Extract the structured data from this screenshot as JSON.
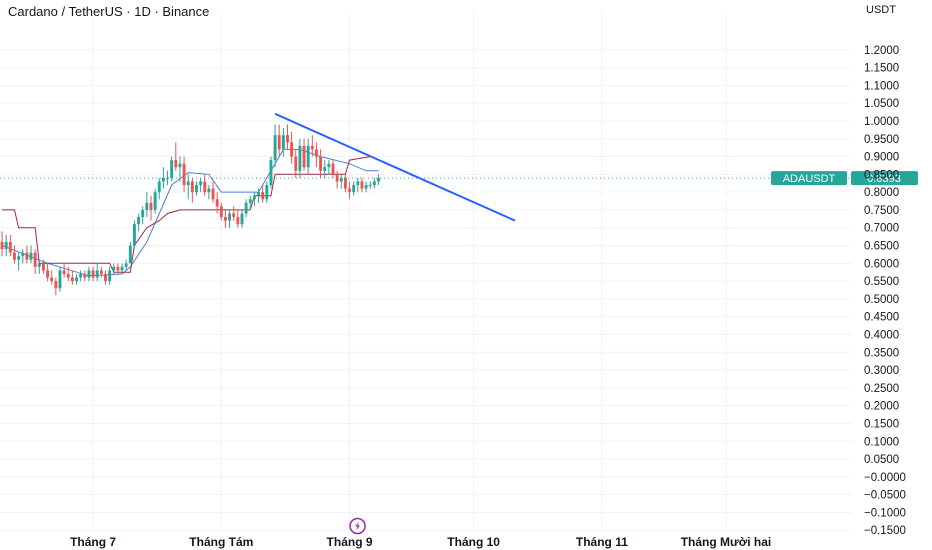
{
  "header": {
    "title": "Cardano / TetherUS · 1D · Binance",
    "currency": "USDT"
  },
  "colors": {
    "up": "#26a69a",
    "down": "#ef5350",
    "baseline": "#4c7dd6",
    "conversion": "#9c2b3d",
    "trendline": "#2962ff",
    "price_line": "#26a69a",
    "grid": "#f0f3fa",
    "event_icon": "#9c27b0"
  },
  "icons": {
    "event": "lightning-icon"
  },
  "chart_data": {
    "type": "candlestick",
    "symbol": "ADAUSDT",
    "last_price_label": "0.8393",
    "last_price": 0.8393,
    "ylim": [
      -0.155,
      1.25
    ],
    "y_ticks": [
      1.2,
      1.15,
      1.1,
      1.05,
      1.0,
      0.95,
      0.9,
      0.85,
      0.8,
      0.75,
      0.7,
      0.65,
      0.6,
      0.55,
      0.5,
      0.45,
      0.4,
      0.35,
      0.3,
      0.25,
      0.2,
      0.15,
      0.1,
      0.05,
      0.0,
      -0.05,
      -0.1,
      -0.15
    ],
    "y_tick_labels": [
      "1.2000",
      "1.1500",
      "1.1000",
      "1.0500",
      "1.0000",
      "0.9500",
      "0.9000",
      "0.8500",
      "0.8000",
      "0.7500",
      "0.7000",
      "0.6500",
      "0.6000",
      "0.5500",
      "0.5000",
      "0.4500",
      "0.4000",
      "0.3500",
      "0.3000",
      "0.2500",
      "0.2000",
      "0.1500",
      "0.1000",
      "0.0500",
      "−0.0000",
      "−0.0500",
      "−0.1000",
      "−0.1500"
    ],
    "x_ticks": [
      {
        "label": "Tháng 7",
        "date": "2025-07-01"
      },
      {
        "label": "Tháng Tám",
        "date": "2025-08-01"
      },
      {
        "label": "Tháng 9",
        "date": "2025-09-01"
      },
      {
        "label": "Tháng 10",
        "date": "2025-10-01"
      },
      {
        "label": "Tháng 11",
        "date": "2025-11-01"
      },
      {
        "label": "Tháng Mười hai",
        "date": "2025-12-01"
      }
    ],
    "xlim": [
      "2025-06-09",
      "2025-12-31"
    ],
    "candles": [
      {
        "d": "2025-06-09",
        "o": 0.66,
        "h": 0.69,
        "l": 0.62,
        "c": 0.64
      },
      {
        "d": "2025-06-10",
        "o": 0.64,
        "h": 0.68,
        "l": 0.62,
        "c": 0.66
      },
      {
        "d": "2025-06-11",
        "o": 0.66,
        "h": 0.68,
        "l": 0.62,
        "c": 0.63
      },
      {
        "d": "2025-06-12",
        "o": 0.63,
        "h": 0.65,
        "l": 0.6,
        "c": 0.61
      },
      {
        "d": "2025-06-13",
        "o": 0.61,
        "h": 0.63,
        "l": 0.58,
        "c": 0.62
      },
      {
        "d": "2025-06-14",
        "o": 0.62,
        "h": 0.64,
        "l": 0.6,
        "c": 0.63
      },
      {
        "d": "2025-06-15",
        "o": 0.63,
        "h": 0.65,
        "l": 0.6,
        "c": 0.61
      },
      {
        "d": "2025-06-16",
        "o": 0.61,
        "h": 0.65,
        "l": 0.6,
        "c": 0.63
      },
      {
        "d": "2025-06-17",
        "o": 0.63,
        "h": 0.64,
        "l": 0.57,
        "c": 0.59
      },
      {
        "d": "2025-06-18",
        "o": 0.59,
        "h": 0.61,
        "l": 0.57,
        "c": 0.6
      },
      {
        "d": "2025-06-19",
        "o": 0.6,
        "h": 0.61,
        "l": 0.57,
        "c": 0.58
      },
      {
        "d": "2025-06-20",
        "o": 0.58,
        "h": 0.6,
        "l": 0.55,
        "c": 0.56
      },
      {
        "d": "2025-06-21",
        "o": 0.56,
        "h": 0.58,
        "l": 0.54,
        "c": 0.55
      },
      {
        "d": "2025-06-22",
        "o": 0.55,
        "h": 0.56,
        "l": 0.51,
        "c": 0.53
      },
      {
        "d": "2025-06-23",
        "o": 0.53,
        "h": 0.59,
        "l": 0.52,
        "c": 0.58
      },
      {
        "d": "2025-06-24",
        "o": 0.58,
        "h": 0.6,
        "l": 0.56,
        "c": 0.57
      },
      {
        "d": "2025-06-25",
        "o": 0.57,
        "h": 0.59,
        "l": 0.55,
        "c": 0.56
      },
      {
        "d": "2025-06-26",
        "o": 0.56,
        "h": 0.58,
        "l": 0.54,
        "c": 0.55
      },
      {
        "d": "2025-06-27",
        "o": 0.55,
        "h": 0.57,
        "l": 0.54,
        "c": 0.56
      },
      {
        "d": "2025-06-28",
        "o": 0.56,
        "h": 0.58,
        "l": 0.55,
        "c": 0.57
      },
      {
        "d": "2025-06-29",
        "o": 0.57,
        "h": 0.58,
        "l": 0.55,
        "c": 0.56
      },
      {
        "d": "2025-06-30",
        "o": 0.56,
        "h": 0.59,
        "l": 0.55,
        "c": 0.58
      },
      {
        "d": "2025-07-01",
        "o": 0.58,
        "h": 0.59,
        "l": 0.55,
        "c": 0.56
      },
      {
        "d": "2025-07-02",
        "o": 0.56,
        "h": 0.6,
        "l": 0.55,
        "c": 0.58
      },
      {
        "d": "2025-07-03",
        "o": 0.58,
        "h": 0.59,
        "l": 0.56,
        "c": 0.57
      },
      {
        "d": "2025-07-04",
        "o": 0.57,
        "h": 0.58,
        "l": 0.54,
        "c": 0.55
      },
      {
        "d": "2025-07-05",
        "o": 0.55,
        "h": 0.59,
        "l": 0.54,
        "c": 0.58
      },
      {
        "d": "2025-07-06",
        "o": 0.58,
        "h": 0.6,
        "l": 0.57,
        "c": 0.59
      },
      {
        "d": "2025-07-07",
        "o": 0.59,
        "h": 0.6,
        "l": 0.57,
        "c": 0.58
      },
      {
        "d": "2025-07-08",
        "o": 0.58,
        "h": 0.6,
        "l": 0.57,
        "c": 0.59
      },
      {
        "d": "2025-07-09",
        "o": 0.59,
        "h": 0.61,
        "l": 0.58,
        "c": 0.6
      },
      {
        "d": "2025-07-10",
        "o": 0.6,
        "h": 0.66,
        "l": 0.6,
        "c": 0.65
      },
      {
        "d": "2025-07-11",
        "o": 0.65,
        "h": 0.72,
        "l": 0.64,
        "c": 0.71
      },
      {
        "d": "2025-07-12",
        "o": 0.71,
        "h": 0.74,
        "l": 0.69,
        "c": 0.73
      },
      {
        "d": "2025-07-13",
        "o": 0.73,
        "h": 0.76,
        "l": 0.71,
        "c": 0.75
      },
      {
        "d": "2025-07-14",
        "o": 0.75,
        "h": 0.8,
        "l": 0.73,
        "c": 0.77
      },
      {
        "d": "2025-07-15",
        "o": 0.77,
        "h": 0.79,
        "l": 0.72,
        "c": 0.75
      },
      {
        "d": "2025-07-16",
        "o": 0.75,
        "h": 0.81,
        "l": 0.74,
        "c": 0.8
      },
      {
        "d": "2025-07-17",
        "o": 0.8,
        "h": 0.84,
        "l": 0.78,
        "c": 0.83
      },
      {
        "d": "2025-07-18",
        "o": 0.83,
        "h": 0.87,
        "l": 0.81,
        "c": 0.84
      },
      {
        "d": "2025-07-19",
        "o": 0.84,
        "h": 0.86,
        "l": 0.82,
        "c": 0.84
      },
      {
        "d": "2025-07-20",
        "o": 0.84,
        "h": 0.9,
        "l": 0.83,
        "c": 0.89
      },
      {
        "d": "2025-07-21",
        "o": 0.89,
        "h": 0.94,
        "l": 0.86,
        "c": 0.87
      },
      {
        "d": "2025-07-22",
        "o": 0.87,
        "h": 0.9,
        "l": 0.83,
        "c": 0.88
      },
      {
        "d": "2025-07-23",
        "o": 0.88,
        "h": 0.9,
        "l": 0.8,
        "c": 0.82
      },
      {
        "d": "2025-07-24",
        "o": 0.82,
        "h": 0.85,
        "l": 0.78,
        "c": 0.83
      },
      {
        "d": "2025-07-25",
        "o": 0.83,
        "h": 0.84,
        "l": 0.77,
        "c": 0.8
      },
      {
        "d": "2025-07-26",
        "o": 0.8,
        "h": 0.83,
        "l": 0.79,
        "c": 0.82
      },
      {
        "d": "2025-07-27",
        "o": 0.82,
        "h": 0.84,
        "l": 0.8,
        "c": 0.83
      },
      {
        "d": "2025-07-28",
        "o": 0.83,
        "h": 0.85,
        "l": 0.79,
        "c": 0.8
      },
      {
        "d": "2025-07-29",
        "o": 0.8,
        "h": 0.82,
        "l": 0.78,
        "c": 0.81
      },
      {
        "d": "2025-07-30",
        "o": 0.81,
        "h": 0.83,
        "l": 0.77,
        "c": 0.78
      },
      {
        "d": "2025-07-31",
        "o": 0.78,
        "h": 0.8,
        "l": 0.74,
        "c": 0.76
      },
      {
        "d": "2025-08-01",
        "o": 0.76,
        "h": 0.77,
        "l": 0.72,
        "c": 0.73
      },
      {
        "d": "2025-08-02",
        "o": 0.73,
        "h": 0.75,
        "l": 0.7,
        "c": 0.72
      },
      {
        "d": "2025-08-03",
        "o": 0.72,
        "h": 0.75,
        "l": 0.7,
        "c": 0.74
      },
      {
        "d": "2025-08-04",
        "o": 0.74,
        "h": 0.76,
        "l": 0.72,
        "c": 0.73
      },
      {
        "d": "2025-08-05",
        "o": 0.73,
        "h": 0.75,
        "l": 0.7,
        "c": 0.71
      },
      {
        "d": "2025-08-06",
        "o": 0.71,
        "h": 0.75,
        "l": 0.7,
        "c": 0.74
      },
      {
        "d": "2025-08-07",
        "o": 0.74,
        "h": 0.78,
        "l": 0.73,
        "c": 0.77
      },
      {
        "d": "2025-08-08",
        "o": 0.77,
        "h": 0.79,
        "l": 0.75,
        "c": 0.78
      },
      {
        "d": "2025-08-09",
        "o": 0.78,
        "h": 0.8,
        "l": 0.76,
        "c": 0.79
      },
      {
        "d": "2025-08-10",
        "o": 0.79,
        "h": 0.81,
        "l": 0.77,
        "c": 0.8
      },
      {
        "d": "2025-08-11",
        "o": 0.8,
        "h": 0.82,
        "l": 0.77,
        "c": 0.78
      },
      {
        "d": "2025-08-12",
        "o": 0.78,
        "h": 0.83,
        "l": 0.77,
        "c": 0.82
      },
      {
        "d": "2025-08-13",
        "o": 0.82,
        "h": 0.9,
        "l": 0.81,
        "c": 0.89
      },
      {
        "d": "2025-08-14",
        "o": 0.89,
        "h": 0.99,
        "l": 0.87,
        "c": 0.96
      },
      {
        "d": "2025-08-15",
        "o": 0.96,
        "h": 0.99,
        "l": 0.9,
        "c": 0.92
      },
      {
        "d": "2025-08-16",
        "o": 0.92,
        "h": 0.98,
        "l": 0.9,
        "c": 0.96
      },
      {
        "d": "2025-08-17",
        "o": 0.96,
        "h": 0.99,
        "l": 0.92,
        "c": 0.94
      },
      {
        "d": "2025-08-18",
        "o": 0.94,
        "h": 0.97,
        "l": 0.88,
        "c": 0.9
      },
      {
        "d": "2025-08-19",
        "o": 0.9,
        "h": 0.92,
        "l": 0.84,
        "c": 0.86
      },
      {
        "d": "2025-08-20",
        "o": 0.86,
        "h": 0.95,
        "l": 0.84,
        "c": 0.93
      },
      {
        "d": "2025-08-21",
        "o": 0.93,
        "h": 0.95,
        "l": 0.86,
        "c": 0.87
      },
      {
        "d": "2025-08-22",
        "o": 0.87,
        "h": 0.95,
        "l": 0.85,
        "c": 0.93
      },
      {
        "d": "2025-08-23",
        "o": 0.93,
        "h": 0.96,
        "l": 0.9,
        "c": 0.92
      },
      {
        "d": "2025-08-24",
        "o": 0.92,
        "h": 0.94,
        "l": 0.87,
        "c": 0.9
      },
      {
        "d": "2025-08-25",
        "o": 0.9,
        "h": 0.92,
        "l": 0.84,
        "c": 0.86
      },
      {
        "d": "2025-08-26",
        "o": 0.86,
        "h": 0.89,
        "l": 0.84,
        "c": 0.87
      },
      {
        "d": "2025-08-27",
        "o": 0.87,
        "h": 0.89,
        "l": 0.85,
        "c": 0.88
      },
      {
        "d": "2025-08-28",
        "o": 0.88,
        "h": 0.89,
        "l": 0.84,
        "c": 0.85
      },
      {
        "d": "2025-08-29",
        "o": 0.85,
        "h": 0.86,
        "l": 0.81,
        "c": 0.83
      },
      {
        "d": "2025-08-30",
        "o": 0.83,
        "h": 0.85,
        "l": 0.81,
        "c": 0.84
      },
      {
        "d": "2025-08-31",
        "o": 0.84,
        "h": 0.85,
        "l": 0.8,
        "c": 0.81
      },
      {
        "d": "2025-09-01",
        "o": 0.81,
        "h": 0.83,
        "l": 0.78,
        "c": 0.8
      },
      {
        "d": "2025-09-02",
        "o": 0.8,
        "h": 0.83,
        "l": 0.79,
        "c": 0.82
      },
      {
        "d": "2025-09-03",
        "o": 0.82,
        "h": 0.84,
        "l": 0.8,
        "c": 0.83
      },
      {
        "d": "2025-09-04",
        "o": 0.83,
        "h": 0.84,
        "l": 0.8,
        "c": 0.81
      },
      {
        "d": "2025-09-05",
        "o": 0.81,
        "h": 0.83,
        "l": 0.8,
        "c": 0.82
      },
      {
        "d": "2025-09-06",
        "o": 0.82,
        "h": 0.83,
        "l": 0.81,
        "c": 0.82
      },
      {
        "d": "2025-09-07",
        "o": 0.82,
        "h": 0.84,
        "l": 0.81,
        "c": 0.83
      },
      {
        "d": "2025-09-08",
        "o": 0.83,
        "h": 0.85,
        "l": 0.82,
        "c": 0.84
      }
    ],
    "baseline_line": [
      {
        "d": "2025-06-09",
        "v": 0.65
      },
      {
        "d": "2025-06-20",
        "v": 0.6
      },
      {
        "d": "2025-06-30",
        "v": 0.565
      },
      {
        "d": "2025-07-08",
        "v": 0.57
      },
      {
        "d": "2025-07-10",
        "v": 0.59
      },
      {
        "d": "2025-07-14",
        "v": 0.66
      },
      {
        "d": "2025-07-17",
        "v": 0.74
      },
      {
        "d": "2025-07-20",
        "v": 0.82
      },
      {
        "d": "2025-07-24",
        "v": 0.855
      },
      {
        "d": "2025-07-29",
        "v": 0.85
      },
      {
        "d": "2025-08-01",
        "v": 0.8
      },
      {
        "d": "2025-08-05",
        "v": 0.8
      },
      {
        "d": "2025-08-10",
        "v": 0.8
      },
      {
        "d": "2025-08-12",
        "v": 0.84
      },
      {
        "d": "2025-08-16",
        "v": 0.92
      },
      {
        "d": "2025-08-20",
        "v": 0.92
      },
      {
        "d": "2025-08-25",
        "v": 0.9
      },
      {
        "d": "2025-09-01",
        "v": 0.88
      },
      {
        "d": "2025-09-05",
        "v": 0.86
      },
      {
        "d": "2025-09-08",
        "v": 0.86
      }
    ],
    "conversion_line": [
      {
        "d": "2025-06-09",
        "v": 0.75
      },
      {
        "d": "2025-06-12",
        "v": 0.75
      },
      {
        "d": "2025-06-13",
        "v": 0.7
      },
      {
        "d": "2025-06-17",
        "v": 0.7
      },
      {
        "d": "2025-06-18",
        "v": 0.6
      },
      {
        "d": "2025-07-05",
        "v": 0.6
      },
      {
        "d": "2025-07-06",
        "v": 0.575
      },
      {
        "d": "2025-07-10",
        "v": 0.575
      },
      {
        "d": "2025-07-11",
        "v": 0.65
      },
      {
        "d": "2025-07-14",
        "v": 0.7
      },
      {
        "d": "2025-07-17",
        "v": 0.72
      },
      {
        "d": "2025-07-19",
        "v": 0.74
      },
      {
        "d": "2025-07-22",
        "v": 0.75
      },
      {
        "d": "2025-08-08",
        "v": 0.75
      },
      {
        "d": "2025-08-09",
        "v": 0.79
      },
      {
        "d": "2025-08-13",
        "v": 0.79
      },
      {
        "d": "2025-08-14",
        "v": 0.85
      },
      {
        "d": "2025-08-31",
        "v": 0.85
      },
      {
        "d": "2025-09-01",
        "v": 0.89
      },
      {
        "d": "2025-09-06",
        "v": 0.9
      }
    ],
    "trendline": {
      "start": {
        "d": "2025-08-14",
        "v": 1.02
      },
      "end": {
        "d": "2025-10-11",
        "v": 0.72
      }
    },
    "event_marker_date": "2025-09-01"
  }
}
